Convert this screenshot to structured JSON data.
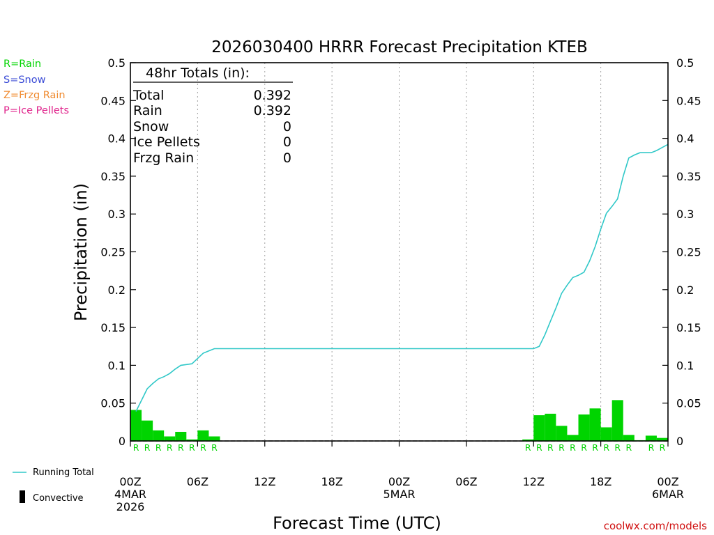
{
  "colors": {
    "rain": "#00d400",
    "snow": "#3a4bd6",
    "frzg": "#f08c32",
    "ice": "#e0248c",
    "running_total": "#30c8c8",
    "axis": "#000000",
    "grid": "#a0a0a0",
    "url": "#d01010"
  },
  "legend": {
    "rain": "R=Rain",
    "snow": "S=Snow",
    "frzg": "Z=Frzg Rain",
    "ice": "P=Ice Pellets",
    "running_total": "Running Total",
    "convective": "Convective"
  },
  "totals": {
    "header": "48hr Totals (in):",
    "rows": [
      {
        "label": "Total",
        "value": "0.392"
      },
      {
        "label": "Rain",
        "value": "0.392"
      },
      {
        "label": "Snow",
        "value": "0"
      },
      {
        "label": "Ice Pellets",
        "value": "0"
      },
      {
        "label": "Frzg Rain",
        "value": "0"
      }
    ]
  },
  "footer_url": "coolwx.com/models",
  "chart_data": {
    "type": "bar",
    "title": "2026030400 HRRR Forecast Precipitation KTEB",
    "xlabel": "Forecast Time (UTC)",
    "ylabel": "Precipitation (in)",
    "ylim": [
      0,
      0.5
    ],
    "xlim": [
      0,
      48
    ],
    "y_ticks": [
      {
        "v": 0,
        "label": "0"
      },
      {
        "v": 0.05,
        "label": "0.05"
      },
      {
        "v": 0.1,
        "label": "0.1"
      },
      {
        "v": 0.15,
        "label": "0.15"
      },
      {
        "v": 0.2,
        "label": "0.2"
      },
      {
        "v": 0.25,
        "label": "0.25"
      },
      {
        "v": 0.3,
        "label": "0.3"
      },
      {
        "v": 0.35,
        "label": "0.35"
      },
      {
        "v": 0.4,
        "label": "0.4"
      },
      {
        "v": 0.45,
        "label": "0.45"
      },
      {
        "v": 0.5,
        "label": "0.5"
      }
    ],
    "x_ticks": [
      {
        "h": 0,
        "lines": [
          "00Z",
          "4MAR",
          "2026"
        ]
      },
      {
        "h": 6,
        "lines": [
          "06Z"
        ]
      },
      {
        "h": 12,
        "lines": [
          "12Z"
        ]
      },
      {
        "h": 18,
        "lines": [
          "18Z"
        ]
      },
      {
        "h": 24,
        "lines": [
          "00Z",
          "5MAR"
        ]
      },
      {
        "h": 30,
        "lines": [
          "06Z"
        ]
      },
      {
        "h": 36,
        "lines": [
          "12Z"
        ]
      },
      {
        "h": 42,
        "lines": [
          "18Z"
        ]
      },
      {
        "h": 48,
        "lines": [
          "00Z",
          "6MAR"
        ]
      }
    ],
    "grid_hours": [
      6,
      12,
      18,
      24,
      30,
      36,
      42
    ],
    "precip_type_label": "R",
    "series": [
      {
        "name": "Hourly Rain",
        "hours": [
          1,
          2,
          3,
          4,
          5,
          6,
          7,
          8,
          36,
          37,
          38,
          39,
          40,
          41,
          42,
          43,
          44,
          45,
          46,
          47,
          48
        ],
        "values": [
          0.041,
          0.027,
          0.014,
          0.006,
          0.012,
          0.002,
          0.014,
          0.006,
          0.002,
          0.034,
          0.036,
          0.02,
          0.008,
          0.035,
          0.043,
          0.018,
          0.054,
          0.008,
          0.001,
          0.007,
          0.004
        ],
        "labels": [
          "R",
          "R",
          "R",
          "R",
          "R",
          "R",
          "R",
          "R",
          "R",
          "R",
          "R",
          "R",
          "R",
          "R",
          "R",
          "R",
          "R",
          "R",
          "",
          "R",
          "R"
        ]
      },
      {
        "name": "Running Total",
        "x": [
          0.5,
          1,
          1.5,
          2,
          2.5,
          3,
          3.5,
          4,
          4.5,
          5,
          5.5,
          6,
          6.5,
          7,
          7.5,
          8,
          36,
          36.5,
          37,
          37.5,
          38,
          38.5,
          39,
          39.5,
          40,
          40.5,
          41,
          41.5,
          42,
          42.5,
          43,
          43.5,
          44,
          44.5,
          45,
          45.5,
          46,
          46.5,
          47,
          47.5,
          48
        ],
        "y": [
          0.039,
          0.054,
          0.069,
          0.076,
          0.082,
          0.085,
          0.089,
          0.095,
          0.1,
          0.101,
          0.102,
          0.109,
          0.116,
          0.119,
          0.122,
          0.122,
          0.122,
          0.125,
          0.14,
          0.158,
          0.176,
          0.195,
          0.206,
          0.216,
          0.219,
          0.223,
          0.238,
          0.257,
          0.28,
          0.301,
          0.31,
          0.32,
          0.35,
          0.374,
          0.378,
          0.381,
          0.381,
          0.381,
          0.384,
          0.388,
          0.392
        ]
      }
    ]
  }
}
